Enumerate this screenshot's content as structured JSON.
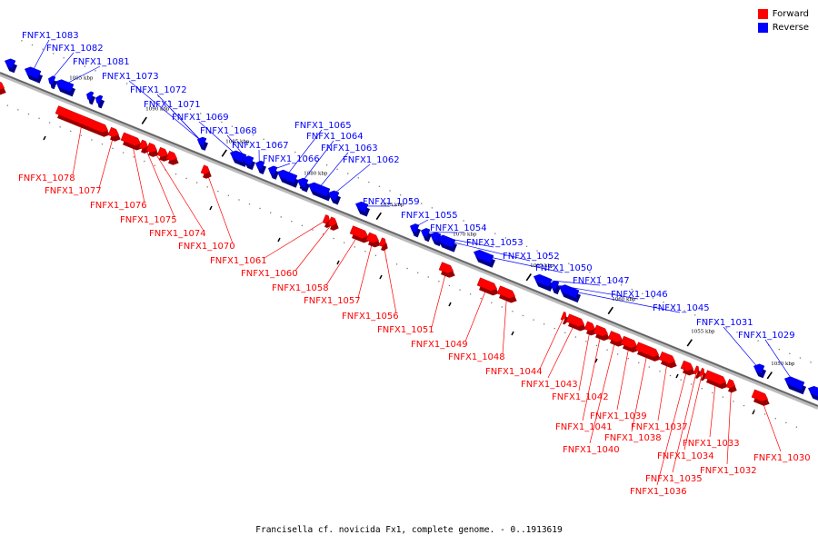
{
  "colors": {
    "forward": "#ff0000",
    "reverse": "#0000ff",
    "backbone": "#888888"
  },
  "legend": [
    {
      "label": "Forward",
      "color": "#ff0000"
    },
    {
      "label": "Reverse",
      "color": "#0000ff"
    }
  ],
  "caption": "Francisella cf. novicida Fx1, complete genome. - 0..1913619",
  "ticks": [
    "1095 kbp",
    "1090 kbp",
    "1085 kbp",
    "1080 kbp",
    "1075 kbp",
    "1070 kbp",
    "1065 kbp",
    "1060 kbp",
    "1055 kbp",
    "1050 kbp"
  ],
  "reverse_genes": [
    "FNFX1_1083",
    "FNFX1_1082",
    "FNFX1_1081",
    "FNFX1_1073",
    "FNFX1_1072",
    "FNFX1_1071",
    "FNFX1_1069",
    "FNFX1_1068",
    "FNFX1_1067",
    "FNFX1_1066",
    "FNFX1_1065",
    "FNFX1_1064",
    "FNFX1_1063",
    "FNFX1_1062",
    "FNFX1_1059",
    "FNFX1_1055",
    "FNFX1_1054",
    "FNFX1_1053",
    "FNFX1_1052",
    "FNFX1_1050",
    "FNFX1_1047",
    "FNFX1_1046",
    "FNFX1_1045",
    "FNFX1_1031",
    "FNFX1_1029"
  ],
  "forward_genes": [
    "FNFX1_1078",
    "FNFX1_1077",
    "FNFX1_1076",
    "FNFX1_1075",
    "FNFX1_1074",
    "FNFX1_1070",
    "FNFX1_1061",
    "FNFX1_1060",
    "FNFX1_1058",
    "FNFX1_1057",
    "FNFX1_1056",
    "FNFX1_1051",
    "FNFX1_1049",
    "FNFX1_1048",
    "FNFX1_1044",
    "FNFX1_1043",
    "FNFX1_1042",
    "FNFX1_1041",
    "FNFX1_1040",
    "FNFX1_1039",
    "FNFX1_1038",
    "FNFX1_1037",
    "FNFX1_1036",
    "FNFX1_1035",
    "FNFX1_1034",
    "FNFX1_1033",
    "FNFX1_1032",
    "FNFX1_1030"
  ]
}
